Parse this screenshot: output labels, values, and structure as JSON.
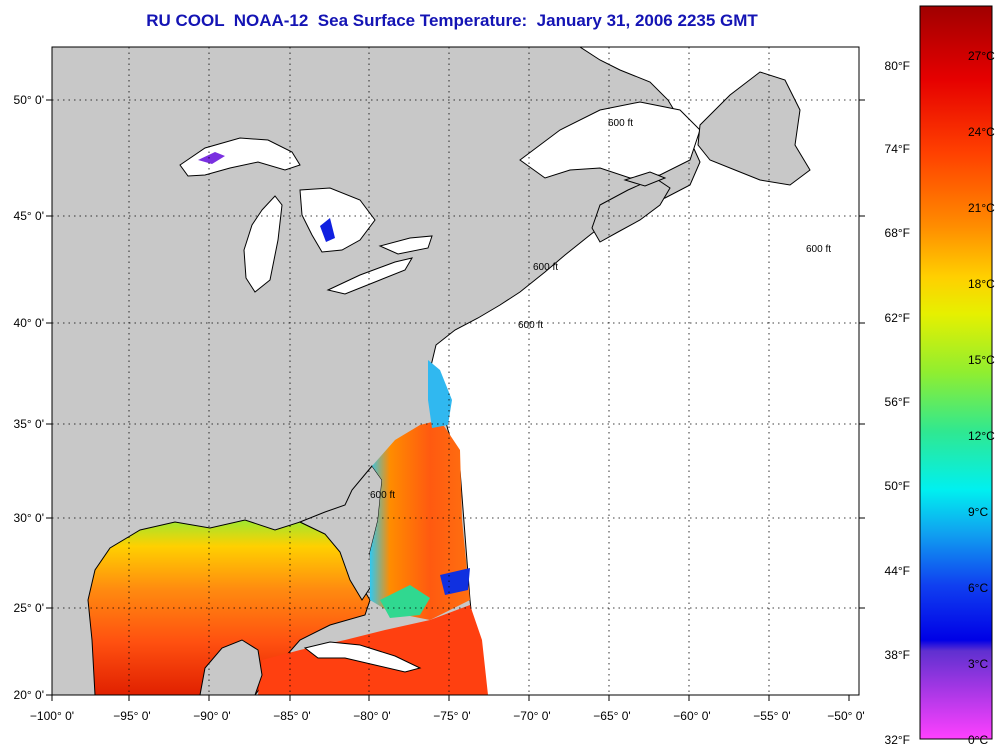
{
  "title": "RU COOL  NOAA-12  Sea Surface Temperature:  January 31, 2006 2235 GMT",
  "map": {
    "lat_labels": [
      "50° 0'",
      "45° 0'",
      "40° 0'",
      "35° 0'",
      "30° 0'",
      "25° 0'",
      "20° 0'"
    ],
    "lon_labels": [
      "−100° 0'",
      "−95° 0'",
      "−90° 0'",
      "−85° 0'",
      "−80° 0'",
      "−75° 0'",
      "−70° 0'",
      "−65° 0'",
      "−60° 0'",
      "−55° 0'",
      "−50° 0'"
    ],
    "contour_label": "600 ft",
    "colors": {
      "land": "#c8c8c8",
      "no_data": "#ffffff",
      "coast": "#000000"
    }
  },
  "colorbar": {
    "f_labels": [
      "80°F",
      "74°F",
      "68°F",
      "62°F",
      "56°F",
      "50°F",
      "44°F",
      "38°F",
      "32°F"
    ],
    "c_labels": [
      "27°C",
      "24°C",
      "21°C",
      "18°C",
      "15°C",
      "12°C",
      "9°C",
      "6°C",
      "3°C",
      "0°C"
    ],
    "gradient": [
      "#a00000",
      "#e60000",
      "#ff4000",
      "#ff8c00",
      "#ffd000",
      "#e6f000",
      "#90ee30",
      "#30e890",
      "#00f0f0",
      "#10a0f0",
      "#1040f0",
      "#0000e6",
      "#6030d0",
      "#ff40ff"
    ]
  }
}
